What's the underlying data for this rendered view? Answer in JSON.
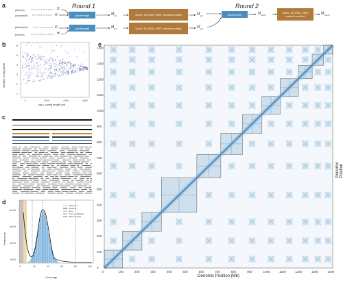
{
  "panels": {
    "a": "a",
    "b": "b",
    "c": "c",
    "d": "d",
    "e": "e"
  },
  "panel_a": {
    "round1": "Round 1",
    "round2": "Round 2",
    "donor": "(Donor)",
    "acceptor": "(Acceptor)",
    "D": "D",
    "H": "H",
    "quickmerge": "quickmerge",
    "curation_box": "Juicer, 3D-DNA, JBAT manual curation",
    "M_pm": "M",
    "M_pm_sub": "pm",
    "M_prime_pm": "M'",
    "M_prime_pm_sub": "pm",
    "M_hpm": "M",
    "M_hpm_sub": "hpcm",
    "M_prime_hpm": "M'",
    "M_prime_hpm_sub": "hpcm"
  },
  "panel_b": {
    "ylabel": "Median contig depth",
    "xlabel": "log₁₀ contig length (nt)",
    "yticks": [
      "8",
      "5",
      "4",
      "3",
      "2",
      "1"
    ],
    "xticks": [
      "0",
      "1000",
      "2000",
      "4000"
    ]
  },
  "panel_d": {
    "ylabel": "Frequency",
    "xlabel": "Coverage",
    "yticks": [
      "8e+05",
      "6e+05",
      "4e+05",
      "2e+05"
    ],
    "xticks": [
      "0",
      "20",
      "40",
      "60",
      "80",
      "100"
    ],
    "legend": [
      "Observed",
      "Model fit",
      "Error",
      "Kmer-multiplicity",
      "Mean of peak"
    ]
  },
  "panel_e": {
    "ylabel": "Genomic Position (Mb)",
    "xlabel": "Genomic Position (Mb)",
    "xticks": [
      "0",
      "100",
      "200",
      "300",
      "400",
      "500",
      "600",
      "700",
      "800",
      "900",
      "1000",
      "1100",
      "1200",
      "1300",
      "1400"
    ],
    "yticks": [
      "0",
      "100",
      "200",
      "300",
      "400",
      "500",
      "600",
      "700",
      "800",
      "900",
      "1000",
      "1100",
      "1200",
      "1300",
      "1400"
    ],
    "colors": {
      "heat": "#4a8dbf",
      "border": "#555555"
    }
  }
}
